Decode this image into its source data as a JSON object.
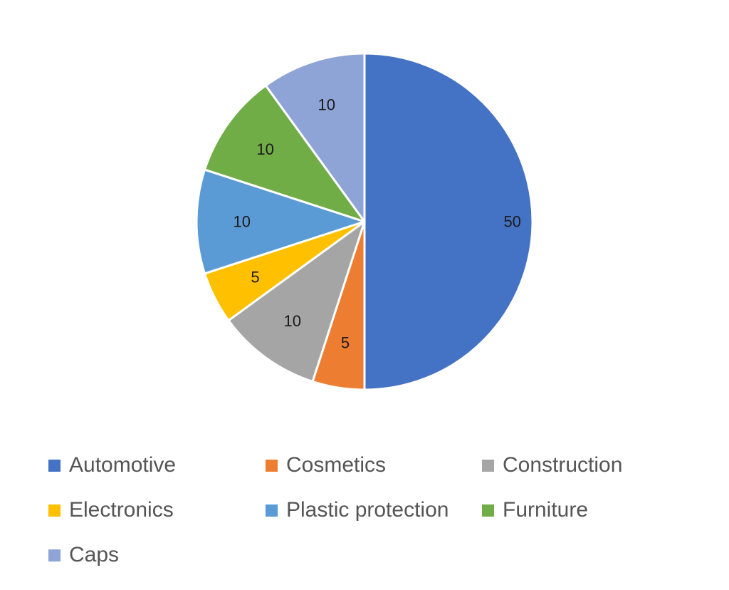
{
  "chart_data": {
    "type": "pie",
    "title": "",
    "categories": [
      "Automotive",
      "Cosmetics",
      "Construction",
      "Electronics",
      "Plastic protection",
      "Furniture",
      "Caps"
    ],
    "values": [
      50,
      5,
      10,
      5,
      10,
      10,
      10
    ],
    "data_labels": [
      "50",
      "5",
      "10",
      "5",
      "10",
      "10",
      "10"
    ],
    "colors": [
      "#4472C4",
      "#ED7D31",
      "#A5A5A5",
      "#FFC000",
      "#5B9BD5",
      "#70AD47",
      "#8FA4D6"
    ],
    "legend_placement": "bottom",
    "start_angle_deg": 0,
    "direction": "clockwise"
  }
}
